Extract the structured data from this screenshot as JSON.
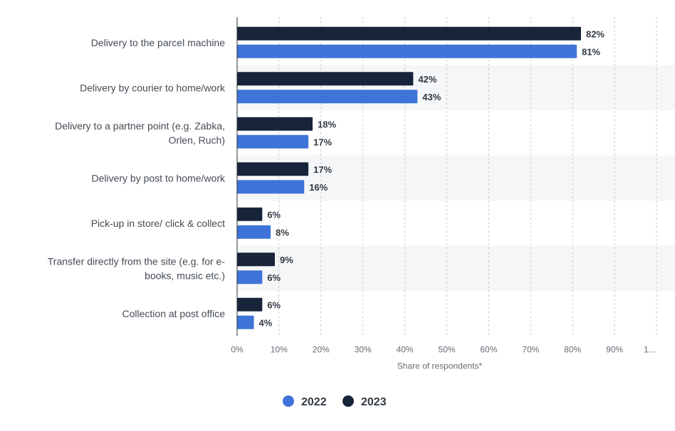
{
  "chart_data": {
    "type": "bar",
    "orientation": "horizontal",
    "categories": [
      [
        "Delivery to the parcel machine"
      ],
      [
        "Delivery by courier to home/work"
      ],
      [
        "Delivery to a partner point (e.g. Zabka,",
        "Orlen, Ruch)"
      ],
      [
        "Delivery by post to home/work"
      ],
      [
        "Pick-up in store/ click & collect"
      ],
      [
        "Transfer directly from the site (e.g. for e-",
        "books, music etc.)"
      ],
      [
        "Collection at post office"
      ]
    ],
    "series": [
      {
        "name": "2023",
        "color": "#17243a",
        "values": [
          82,
          42,
          18,
          17,
          6,
          9,
          6
        ]
      },
      {
        "name": "2022",
        "color": "#3f73d8",
        "values": [
          81,
          43,
          17,
          16,
          8,
          6,
          4
        ]
      }
    ],
    "legend_order": [
      "2022",
      "2023"
    ],
    "legend_position": "bottom-center",
    "x_ticks": [
      "0%",
      "10%",
      "20%",
      "30%",
      "40%",
      "50%",
      "60%",
      "70%",
      "80%",
      "90%",
      "1..."
    ],
    "xlabel": "Share of respondents*",
    "xlim": [
      0,
      100
    ],
    "value_suffix": "%",
    "grid": true,
    "alternating_row_bands": true
  }
}
